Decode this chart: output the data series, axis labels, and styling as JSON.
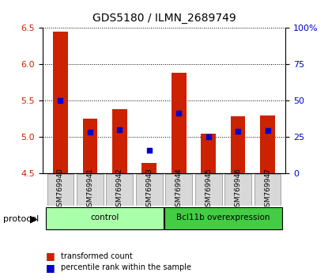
{
  "title": "GDS5180 / ILMN_2689749",
  "samples": [
    "GSM769940",
    "GSM769941",
    "GSM769942",
    "GSM769943",
    "GSM769944",
    "GSM769945",
    "GSM769946",
    "GSM769947"
  ],
  "transformed_counts": [
    6.45,
    5.25,
    5.38,
    4.65,
    5.88,
    5.05,
    5.29,
    5.3
  ],
  "percentile_ranks": [
    5.5,
    5.07,
    5.1,
    4.82,
    5.33,
    5.0,
    5.08,
    5.09
  ],
  "ymin": 4.5,
  "ymax": 6.5,
  "yticks_left": [
    4.5,
    5.0,
    5.5,
    6.0,
    6.5
  ],
  "yticks_right": [
    0,
    25,
    50,
    75,
    100
  ],
  "groups": [
    {
      "label": "control",
      "indices": [
        0,
        1,
        2,
        3
      ],
      "color": "#aaffaa"
    },
    {
      "label": "Bcl11b overexpression",
      "indices": [
        4,
        5,
        6,
        7
      ],
      "color": "#44cc44"
    }
  ],
  "bar_color": "#cc2200",
  "percentile_color": "#0000cc",
  "bar_width": 0.5,
  "legend_items": [
    {
      "label": "transformed count",
      "color": "#cc2200"
    },
    {
      "label": "percentile rank within the sample",
      "color": "#0000cc"
    }
  ],
  "protocol_label": "protocol",
  "left_label_color": "#cc2200",
  "right_label_color": "#0000cc"
}
